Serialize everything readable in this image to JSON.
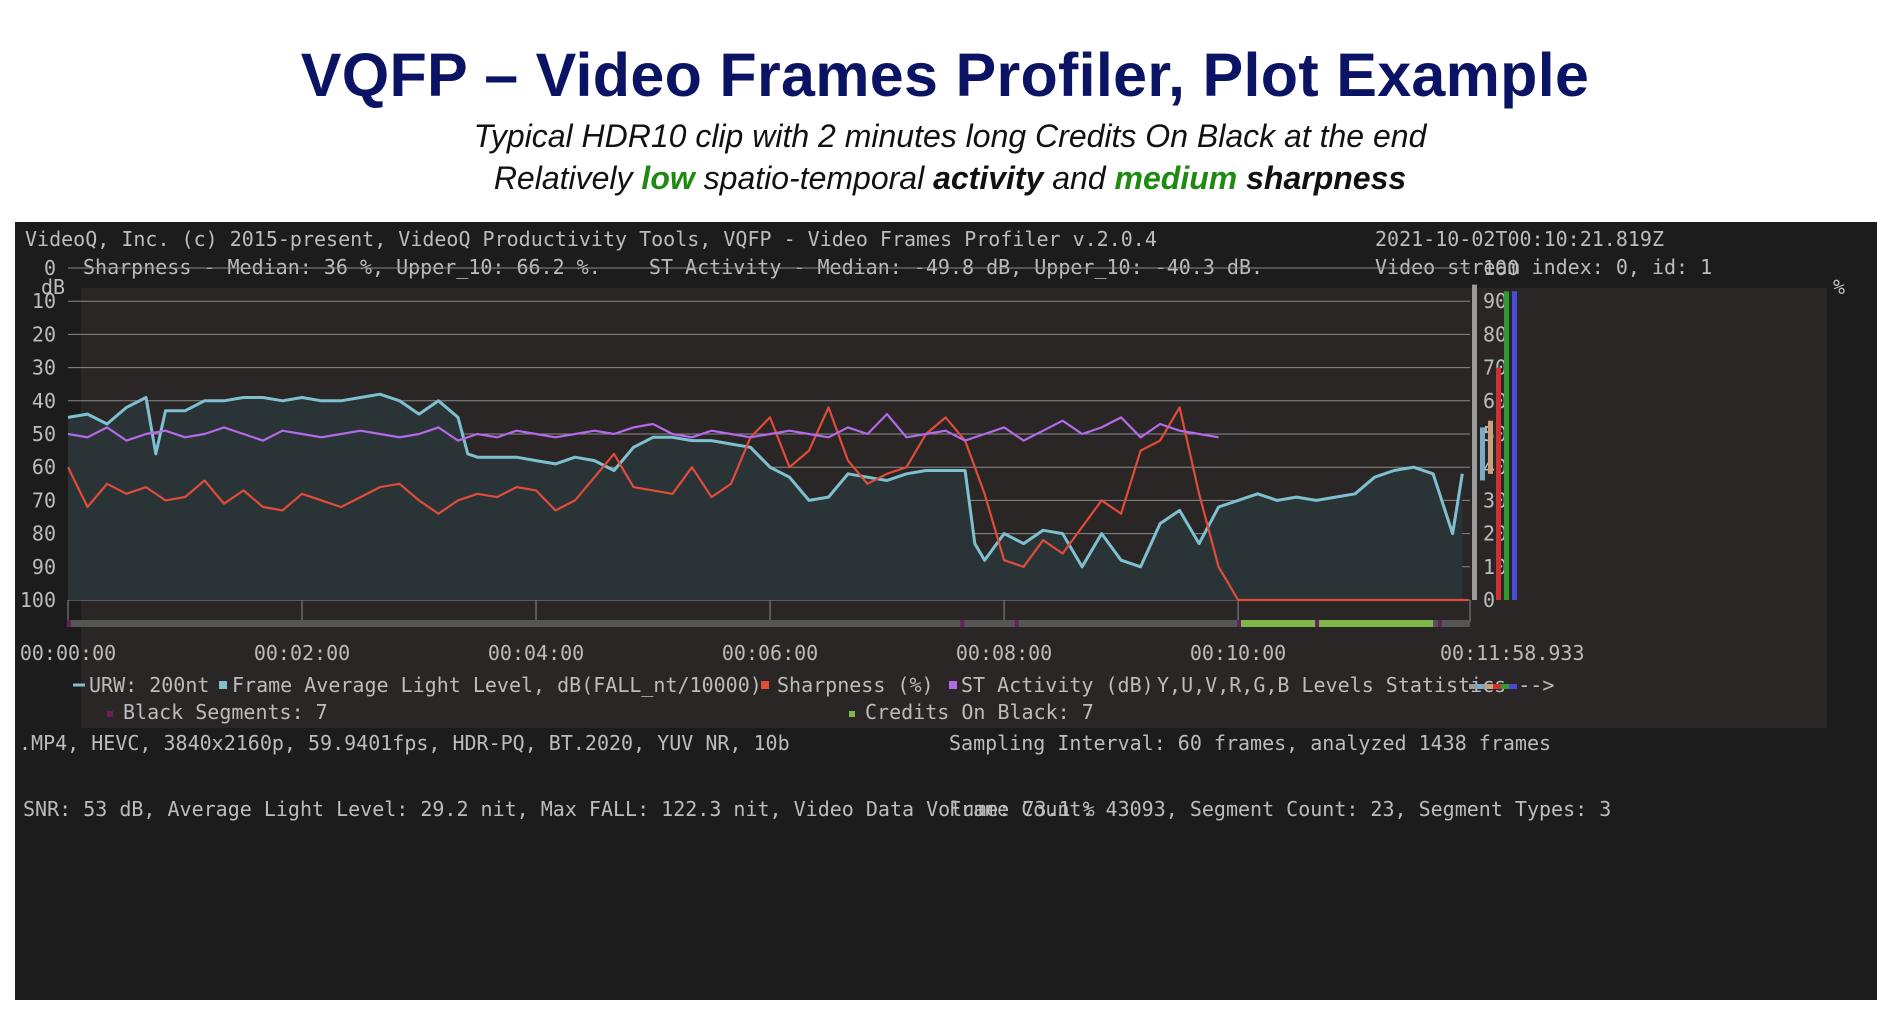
{
  "page": {
    "title": "VQFP – Video Frames Profiler, Plot Example",
    "subtitle_line1": "Typical HDR10 clip with 2 minutes long Credits On Black at the end",
    "subtitle_line2": {
      "part1": "Relatively ",
      "low": "low",
      "part2": " spatio-temporal ",
      "activity": "activity",
      "part3": " and ",
      "medium": "medium",
      "sharpness": " sharpness"
    }
  },
  "header": {
    "app_info": "VideoQ, Inc. (c) 2015-present, VideoQ Productivity Tools, VQFP - Video Frames Profiler v.2.0.4",
    "stats": "Sharpness - Median: 36 %, Upper_10: 66.2 %.    ST Activity - Median: -49.8 dB, Upper_10: -40.3 dB.",
    "timestamp": "2021-10-02T00:10:21.819Z",
    "stream": "Video stream index: 0, id: 1"
  },
  "legend": {
    "urw": "URW: 200nt",
    "fall": "Frame Average Light Level, dB(FALL_nt/10000)",
    "sharpness": "Sharpness (%)",
    "st_activity": "ST Activity (dB)",
    "levels": "Y,U,V,R,G,B Levels Statistics -->",
    "black_segments": "Black Segments: 7",
    "credits": "Credits On Black: 7"
  },
  "footer": {
    "format": ".MP4, HEVC, 3840x2160p, 59.9401fps, HDR-PQ, BT.2020, YUV NR, 10b",
    "sampling": "Sampling Interval: 60 frames, analyzed 1438 frames",
    "snr": "SNR: 53 dB, Average Light Level: 29.2 nit, Max FALL: 122.3 nit, Video Data Volume: 73.1 %",
    "counts": "Frame Count: 43093, Segment Count: 23, Segment Types: 3"
  },
  "colors": {
    "fall": "#7fc0d0",
    "fall_fill": "#2a3437",
    "sharpness": "#e04b3a",
    "st_activity": "#b46ae8",
    "black_segment": "#6a1f5a",
    "credits": "#7fb84a",
    "timeline": "#555555",
    "grid": "#8a8a8a",
    "level_y": "#9a9a9a",
    "level_u": "#7aa9c9",
    "level_v": "#c9a07a",
    "level_r": "#d03030",
    "level_g": "#2f9a2f",
    "level_b": "#4a4ad8"
  },
  "chart_data": {
    "type": "line",
    "title": "",
    "xlabel": "",
    "left_axis_label": "dB",
    "right_axis_label": "%",
    "left_ticks": [
      "0",
      "10",
      "20",
      "30",
      "40",
      "50",
      "60",
      "70",
      "80",
      "90",
      "100"
    ],
    "right_ticks": [
      "100",
      "90",
      "80",
      "70",
      "60",
      "50",
      "40",
      "30",
      "20",
      "10",
      "0"
    ],
    "left_range": [
      0,
      100
    ],
    "right_range": [
      100,
      0
    ],
    "x_tick_labels": [
      "00:00:00",
      "00:02:00",
      "00:04:00",
      "00:06:00",
      "00:08:00",
      "00:10:00",
      "00:11:58.933"
    ],
    "x_tick_seconds": [
      0,
      120,
      240,
      360,
      480,
      600,
      718.933
    ],
    "x_range_seconds": [
      0,
      718.933
    ],
    "grid": true,
    "series": [
      {
        "name": "Frame Average Light Level, dB(FALL_nt/10000)",
        "axis": "left",
        "x": [
          0,
          10,
          20,
          30,
          40,
          45,
          50,
          60,
          70,
          80,
          90,
          100,
          110,
          120,
          130,
          140,
          150,
          160,
          170,
          180,
          190,
          200,
          205,
          210,
          220,
          230,
          240,
          250,
          260,
          270,
          280,
          290,
          300,
          310,
          320,
          330,
          340,
          350,
          360,
          370,
          380,
          390,
          400,
          410,
          420,
          430,
          440,
          450,
          460,
          465,
          470,
          480,
          490,
          500,
          510,
          520,
          530,
          540,
          550,
          560,
          570,
          580,
          590,
          600,
          610,
          620,
          630,
          640,
          650,
          660,
          670,
          680,
          690,
          700,
          710,
          715
        ],
        "values": [
          45,
          44,
          47,
          42,
          39,
          56,
          43,
          43,
          40,
          40,
          39,
          39,
          40,
          39,
          40,
          40,
          39,
          38,
          40,
          44,
          40,
          45,
          56,
          57,
          57,
          57,
          58,
          59,
          57,
          58,
          61,
          54,
          51,
          51,
          52,
          52,
          53,
          54,
          60,
          63,
          70,
          69,
          62,
          63,
          64,
          62,
          61,
          61,
          61,
          83,
          88,
          80,
          83,
          79,
          80,
          90,
          80,
          88,
          90,
          77,
          73,
          83,
          72,
          70,
          68,
          70,
          69,
          70,
          69,
          68,
          63,
          61,
          60,
          62,
          80,
          62
        ]
      },
      {
        "name": "Sharpness (%)",
        "axis": "right",
        "x": [
          0,
          10,
          20,
          30,
          40,
          50,
          60,
          70,
          80,
          90,
          100,
          110,
          120,
          130,
          140,
          150,
          160,
          170,
          180,
          190,
          200,
          210,
          220,
          230,
          240,
          250,
          260,
          270,
          280,
          290,
          300,
          310,
          320,
          330,
          340,
          350,
          360,
          370,
          380,
          390,
          400,
          410,
          420,
          430,
          440,
          450,
          460,
          470,
          480,
          490,
          500,
          510,
          520,
          530,
          540,
          550,
          560,
          570,
          580,
          590,
          600,
          610,
          620,
          630,
          640,
          650,
          660,
          670,
          680,
          690,
          700,
          710,
          718
        ],
        "values": [
          40,
          28,
          35,
          32,
          34,
          30,
          31,
          36,
          29,
          33,
          28,
          27,
          32,
          30,
          28,
          31,
          34,
          35,
          30,
          26,
          30,
          32,
          31,
          34,
          33,
          27,
          30,
          37,
          44,
          34,
          33,
          32,
          40,
          31,
          35,
          49,
          55,
          40,
          45,
          58,
          42,
          35,
          38,
          40,
          50,
          55,
          48,
          32,
          12,
          10,
          18,
          14,
          22,
          30,
          26,
          45,
          48,
          58,
          32,
          10,
          0,
          0,
          0,
          0,
          0,
          0,
          0,
          0,
          0,
          0,
          0,
          0,
          0
        ]
      },
      {
        "name": "ST Activity (dB)",
        "axis": "left",
        "x": [
          0,
          10,
          20,
          30,
          40,
          50,
          60,
          70,
          80,
          90,
          100,
          110,
          120,
          130,
          140,
          150,
          160,
          170,
          180,
          190,
          200,
          210,
          220,
          230,
          240,
          250,
          260,
          270,
          280,
          290,
          300,
          310,
          320,
          330,
          340,
          350,
          360,
          370,
          380,
          390,
          400,
          410,
          420,
          430,
          440,
          450,
          460,
          470,
          480,
          490,
          500,
          510,
          520,
          530,
          540,
          550,
          560,
          570,
          580,
          590
        ],
        "values": [
          50,
          51,
          48,
          52,
          50,
          49,
          51,
          50,
          48,
          50,
          52,
          49,
          50,
          51,
          50,
          49,
          50,
          51,
          50,
          48,
          52,
          50,
          51,
          49,
          50,
          51,
          50,
          49,
          50,
          48,
          47,
          50,
          51,
          49,
          50,
          51,
          50,
          49,
          50,
          51,
          48,
          50,
          44,
          51,
          50,
          49,
          52,
          50,
          48,
          52,
          49,
          46,
          50,
          48,
          45,
          51,
          47,
          49,
          50,
          51
        ]
      }
    ],
    "black_segments": {
      "name": "Black Segments: 7",
      "count": 7
    },
    "credits_on_black": {
      "name": "Credits On Black: 7",
      "count": 7
    }
  }
}
